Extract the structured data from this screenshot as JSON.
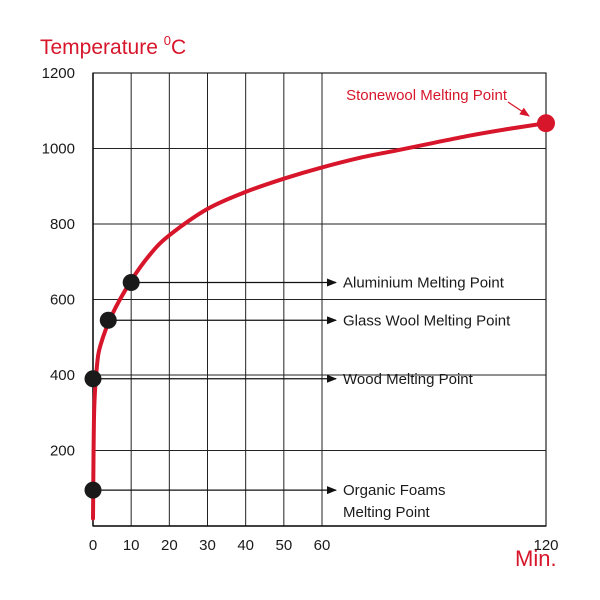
{
  "chart_data": {
    "type": "line",
    "ylabel_main": "Temperature ",
    "ylabel_sup": "0",
    "ylabel_unit": "C",
    "xlabel": "Min.",
    "x_ticks": [
      0,
      10,
      20,
      30,
      40,
      50,
      60,
      120
    ],
    "y_ticks": [
      200,
      400,
      600,
      800,
      1000,
      1200
    ],
    "y_tick_labels": [
      "200",
      "400",
      "600",
      "800",
      "1000",
      "1200"
    ],
    "x_tick_labels": [
      "0",
      "10",
      "20",
      "30",
      "40",
      "50",
      "60",
      "120"
    ],
    "x_axis_note": "non-linear scale: 0–60 then 120",
    "ylim": [
      0,
      1200
    ],
    "grid": true,
    "curve_color": "#d7162b",
    "point_color": "#1a1a1a",
    "series": [
      {
        "values": [
          {
            "x": 0,
            "y": 20
          },
          {
            "x": 0.3,
            "y": 300
          },
          {
            "x": 1,
            "y": 420
          },
          {
            "x": 2,
            "y": 480
          },
          {
            "x": 5,
            "y": 560
          },
          {
            "x": 10,
            "y": 650
          },
          {
            "x": 15,
            "y": 720
          },
          {
            "x": 20,
            "y": 770
          },
          {
            "x": 30,
            "y": 840
          },
          {
            "x": 40,
            "y": 885
          },
          {
            "x": 50,
            "y": 920
          },
          {
            "x": 60,
            "y": 950
          },
          {
            "x": 70,
            "y": 975
          },
          {
            "x": 80,
            "y": 995
          },
          {
            "x": 90,
            "y": 1015
          },
          {
            "x": 100,
            "y": 1035
          },
          {
            "x": 110,
            "y": 1052
          },
          {
            "x": 120,
            "y": 1067
          }
        ]
      }
    ],
    "markers": [
      {
        "label": "Organic Foams",
        "label2": "Melting Point",
        "x": 0,
        "y": 95
      },
      {
        "label": "Wood Melting Point",
        "x": 0,
        "y": 390
      },
      {
        "label": "Glass Wool Melting Point",
        "x": 4,
        "y": 545
      },
      {
        "label": "Aluminium Melting Point",
        "x": 10,
        "y": 645
      }
    ],
    "highlight": {
      "label": "Stonewool Melting Point",
      "x": 120,
      "y": 1067,
      "color": "#d7162b"
    }
  }
}
